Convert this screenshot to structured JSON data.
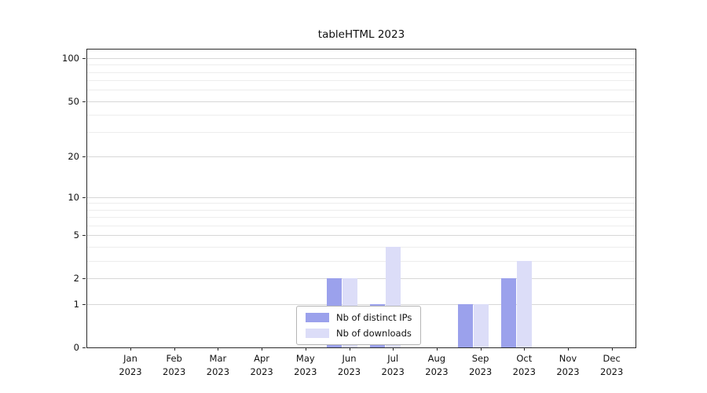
{
  "title": "tableHTML 2023",
  "chart_data": {
    "type": "bar",
    "title": "tableHTML 2023",
    "year": "2023",
    "categories": [
      "Jan",
      "Feb",
      "Mar",
      "Apr",
      "May",
      "Jun",
      "Jul",
      "Aug",
      "Sep",
      "Oct",
      "Nov",
      "Dec"
    ],
    "series": [
      {
        "name": "Nb of distinct IPs",
        "color": "#9ba1ec",
        "values": [
          0,
          0,
          0,
          0,
          0,
          2,
          1,
          0,
          1,
          2,
          0,
          0
        ]
      },
      {
        "name": "Nb of downloads",
        "color": "#dcddf8",
        "values": [
          0,
          0,
          0,
          0,
          0,
          2,
          4,
          0,
          1,
          3,
          0,
          0
        ]
      }
    ],
    "y_ticks": [
      0,
      1,
      2,
      5,
      10,
      20,
      50,
      100
    ],
    "y_minor_ticks": [
      3,
      4,
      6,
      7,
      8,
      9,
      30,
      40,
      60,
      70,
      80,
      90
    ],
    "ylim": [
      0,
      115
    ],
    "yscale": "log1p",
    "grid": true,
    "legend_position": "bottom-center"
  }
}
